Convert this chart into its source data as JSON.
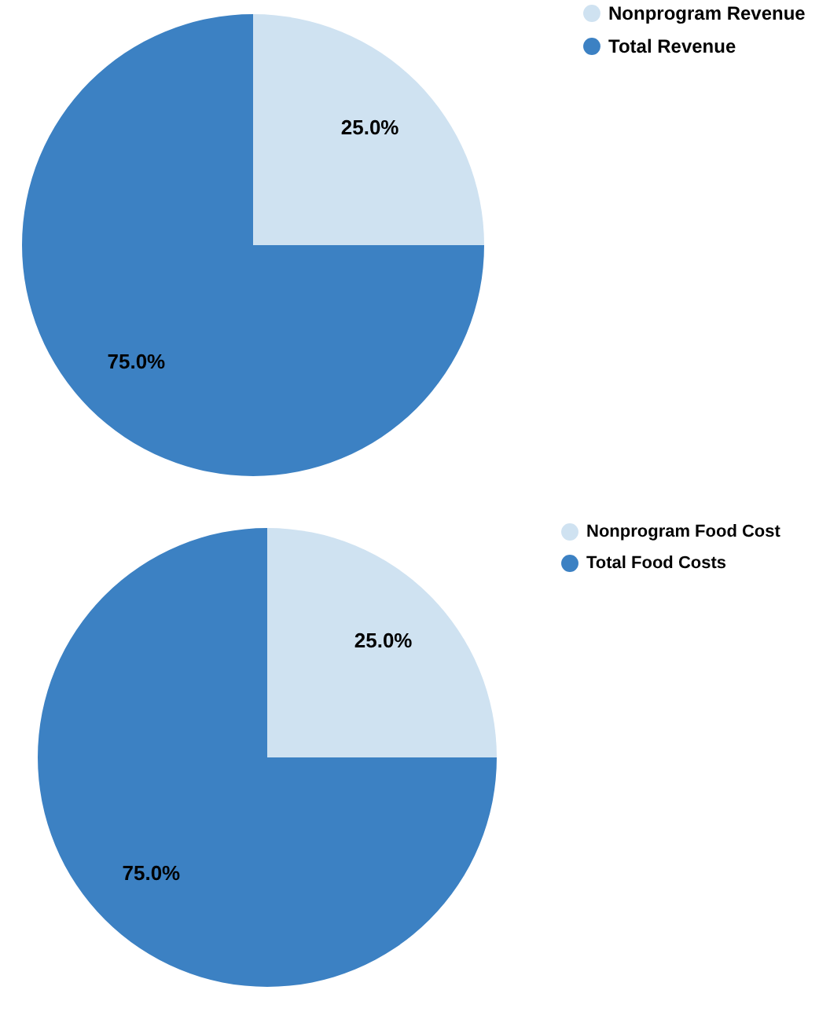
{
  "chart_data": [
    {
      "type": "pie",
      "categories": [
        "Nonprogram Revenue",
        "Total Revenue"
      ],
      "values": [
        25,
        75
      ],
      "colors": [
        "#cfe2f1",
        "#3c81c3"
      ],
      "value_labels": [
        "25.0%",
        "75.0%"
      ],
      "legend": "top right"
    },
    {
      "type": "pie",
      "categories": [
        "Nonprogram Food Cost",
        "Total Food Costs"
      ],
      "values": [
        25,
        75
      ],
      "colors": [
        "#cfe2f1",
        "#3c81c3"
      ],
      "value_labels": [
        "25.0%",
        "75.0%"
      ],
      "legend": "top right"
    }
  ]
}
